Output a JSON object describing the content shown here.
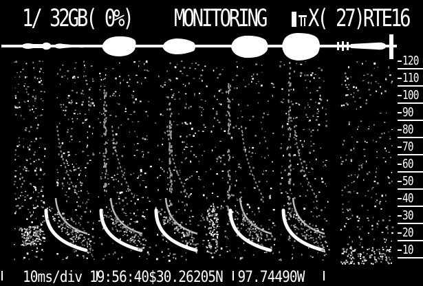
{
  "status_bar": {
    "storage": "1/ 32GB( 0%)",
    "mode": "MONITORING",
    "battery_icon": "battery-icon",
    "signal_icon": "signal-icon",
    "right_text": "X( 27)RTE16"
  },
  "freq_scale": {
    "labels": [
      "120",
      "110",
      "100",
      "90",
      "80",
      "70",
      "60",
      "50",
      "40",
      "30",
      "20",
      "10"
    ]
  },
  "bottom_bar": {
    "readout": "10ms/div 19:56:40$30.26205N  97.74490W"
  },
  "colors": {
    "background": "#000000",
    "foreground": "#ffffff",
    "dim_gray": "#8c8c8c"
  }
}
